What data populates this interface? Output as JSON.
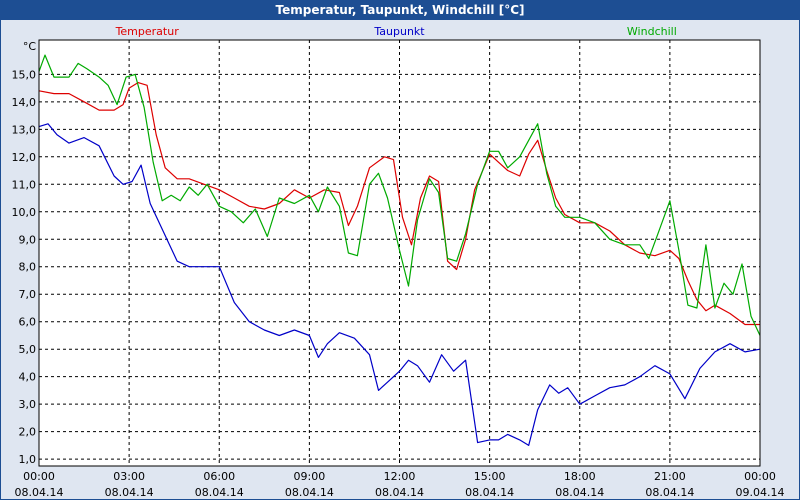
{
  "window": {
    "title": "Temperatur, Taupunkt, Windchill [°C]"
  },
  "chart_data": {
    "type": "line",
    "title": "Temperatur, Taupunkt, Windchill [°C]",
    "ylabel": "°C",
    "ylim": [
      0.75,
      16.25
    ],
    "xlim": [
      0,
      24
    ],
    "yticks": [
      1,
      2,
      3,
      4,
      5,
      6,
      7,
      8,
      9,
      10,
      11,
      12,
      13,
      14,
      15
    ],
    "ytick_labels": [
      "1,0",
      "2,0",
      "3,0",
      "4,0",
      "5,0",
      "6,0",
      "7,0",
      "8,0",
      "9,0",
      "10,0",
      "11,0",
      "12,0",
      "13,0",
      "14,0",
      "15,0"
    ],
    "xticks": [
      0,
      3,
      6,
      9,
      12,
      15,
      18,
      21,
      24
    ],
    "xtick_labels": [
      {
        "time": "00:00",
        "date": "08.04.14"
      },
      {
        "time": "03:00",
        "date": "08.04.14"
      },
      {
        "time": "06:00",
        "date": "08.04.14"
      },
      {
        "time": "09:00",
        "date": "08.04.14"
      },
      {
        "time": "12:00",
        "date": "08.04.14"
      },
      {
        "time": "15:00",
        "date": "08.04.14"
      },
      {
        "time": "18:00",
        "date": "08.04.14"
      },
      {
        "time": "21:00",
        "date": "08.04.14"
      },
      {
        "time": "00:00",
        "date": "09.04.14"
      }
    ],
    "grid": true,
    "legend_position": "top",
    "series": [
      {
        "name": "Temperatur",
        "color": "#dd0000",
        "x": [
          0,
          0.5,
          1,
          1.5,
          2,
          2.5,
          2.8,
          3,
          3.3,
          3.6,
          3.9,
          4.2,
          4.6,
          5,
          5.5,
          6,
          6.5,
          7,
          7.5,
          8,
          8.5,
          9,
          9.5,
          10,
          10.3,
          10.6,
          11,
          11.5,
          11.8,
          12.1,
          12.4,
          12.7,
          13,
          13.3,
          13.6,
          13.9,
          14.2,
          14.5,
          15,
          15.3,
          15.6,
          16,
          16.3,
          16.6,
          16.9,
          17.2,
          17.5,
          18,
          18.5,
          19,
          19.5,
          20,
          20.5,
          21,
          21.3,
          21.6,
          21.9,
          22.2,
          22.5,
          23,
          23.5,
          24
        ],
        "values": [
          14.4,
          14.3,
          14.3,
          14.0,
          13.7,
          13.7,
          13.9,
          14.5,
          14.7,
          14.6,
          12.8,
          11.6,
          11.2,
          11.2,
          11.0,
          10.8,
          10.5,
          10.2,
          10.1,
          10.3,
          10.8,
          10.5,
          10.8,
          10.7,
          9.5,
          10.2,
          11.6,
          12.0,
          11.9,
          9.8,
          8.8,
          10.5,
          11.3,
          11.1,
          8.2,
          7.9,
          9.0,
          10.8,
          12.1,
          11.8,
          11.5,
          11.3,
          12.1,
          12.6,
          11.5,
          10.5,
          9.9,
          9.6,
          9.6,
          9.3,
          8.8,
          8.5,
          8.4,
          8.6,
          8.3,
          7.5,
          6.8,
          6.4,
          6.6,
          6.3,
          5.9,
          5.9
        ]
      },
      {
        "name": "Taupunkt",
        "color": "#0000c8",
        "x": [
          0,
          0.3,
          0.6,
          1,
          1.5,
          2,
          2.5,
          2.8,
          3.1,
          3.4,
          3.7,
          4,
          4.3,
          4.6,
          5,
          5.5,
          6,
          6.5,
          7,
          7.5,
          8,
          8.5,
          9,
          9.3,
          9.6,
          10,
          10.5,
          11,
          11.3,
          11.6,
          12,
          12.3,
          12.6,
          13,
          13.4,
          13.8,
          14.2,
          14.6,
          15,
          15.3,
          15.6,
          16,
          16.3,
          16.6,
          17,
          17.3,
          17.6,
          18,
          18.5,
          19,
          19.5,
          20,
          20.5,
          21,
          21.5,
          22,
          22.5,
          23,
          23.5,
          24
        ],
        "values": [
          13.1,
          13.2,
          12.8,
          12.5,
          12.7,
          12.4,
          11.3,
          11.0,
          11.1,
          11.7,
          10.3,
          9.6,
          8.9,
          8.2,
          8.0,
          8.0,
          8.0,
          6.7,
          6.0,
          5.7,
          5.5,
          5.7,
          5.5,
          4.7,
          5.2,
          5.6,
          5.4,
          4.8,
          3.5,
          3.8,
          4.2,
          4.6,
          4.4,
          3.8,
          4.8,
          4.2,
          4.6,
          1.6,
          1.7,
          1.7,
          1.9,
          1.7,
          1.5,
          2.8,
          3.7,
          3.4,
          3.6,
          3.0,
          3.3,
          3.6,
          3.7,
          4.0,
          4.4,
          4.1,
          3.2,
          4.3,
          4.9,
          5.2,
          4.9,
          5.0
        ]
      },
      {
        "name": "Windchill",
        "color": "#00aa00",
        "x": [
          0,
          0.2,
          0.5,
          1,
          1.3,
          1.6,
          2,
          2.3,
          2.6,
          2.9,
          3.2,
          3.5,
          3.8,
          4.1,
          4.4,
          4.7,
          5,
          5.3,
          5.6,
          6,
          6.4,
          6.8,
          7.2,
          7.6,
          8,
          8.5,
          9,
          9.3,
          9.6,
          10,
          10.3,
          10.6,
          11,
          11.3,
          11.6,
          12,
          12.3,
          12.6,
          13,
          13.3,
          13.6,
          13.9,
          14.2,
          14.6,
          15,
          15.3,
          15.6,
          16,
          16.3,
          16.6,
          16.9,
          17.2,
          17.5,
          18,
          18.5,
          19,
          19.5,
          20,
          20.3,
          20.6,
          21,
          21.3,
          21.6,
          21.9,
          22.2,
          22.5,
          22.8,
          23.1,
          23.4,
          23.7,
          24
        ],
        "values": [
          15.1,
          15.7,
          14.9,
          14.9,
          15.4,
          15.2,
          14.9,
          14.6,
          13.9,
          14.9,
          15.0,
          13.8,
          11.8,
          10.4,
          10.6,
          10.4,
          10.9,
          10.6,
          11.0,
          10.2,
          10.0,
          9.6,
          10.1,
          9.1,
          10.5,
          10.3,
          10.6,
          10.0,
          10.9,
          10.2,
          8.5,
          8.4,
          11.0,
          11.4,
          10.5,
          8.6,
          7.3,
          9.7,
          11.2,
          10.7,
          8.3,
          8.2,
          9.2,
          11.0,
          12.2,
          12.2,
          11.6,
          12.0,
          12.6,
          13.2,
          11.4,
          10.2,
          9.8,
          9.8,
          9.6,
          9.0,
          8.8,
          8.8,
          8.3,
          9.2,
          10.4,
          8.6,
          6.6,
          6.5,
          8.8,
          6.5,
          7.4,
          7.0,
          8.1,
          6.2,
          5.5
        ]
      }
    ]
  }
}
